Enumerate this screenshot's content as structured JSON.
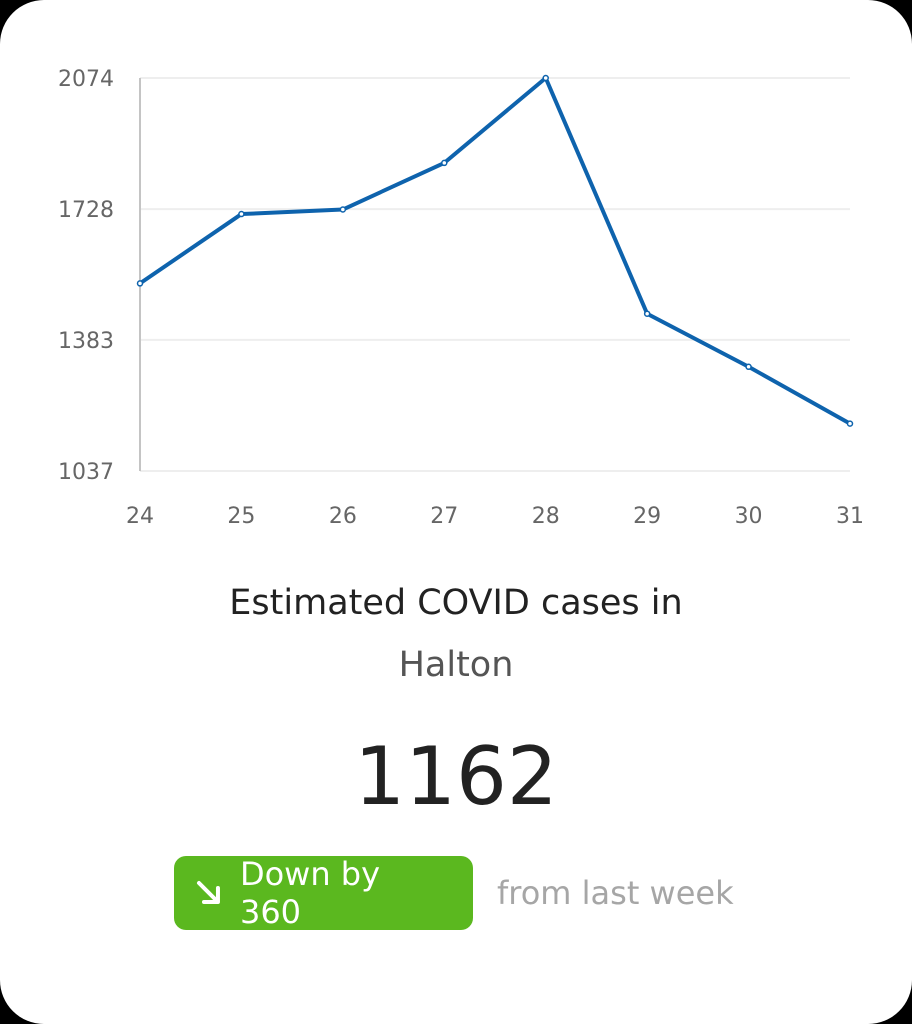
{
  "chart_data": {
    "type": "line",
    "categories": [
      "24",
      "25",
      "26",
      "27",
      "28",
      "29",
      "30",
      "31"
    ],
    "series": [
      {
        "values": [
          1532,
          1715,
          1727,
          1850,
          2074,
          1452,
          1312,
          1162
        ]
      }
    ],
    "yticks": [
      "2074",
      "1728",
      "1383",
      "1037"
    ],
    "ylim": [
      1037,
      2074
    ],
    "grid": true,
    "line_color": "#0e63ad"
  },
  "title": {
    "line1": "Estimated COVID cases in",
    "region": "Halton"
  },
  "current_value": "1162",
  "change": {
    "label": "Down by 360",
    "direction_icon": "arrow-down-right-icon",
    "badge_color": "#5bb81f",
    "note": "from last week"
  }
}
